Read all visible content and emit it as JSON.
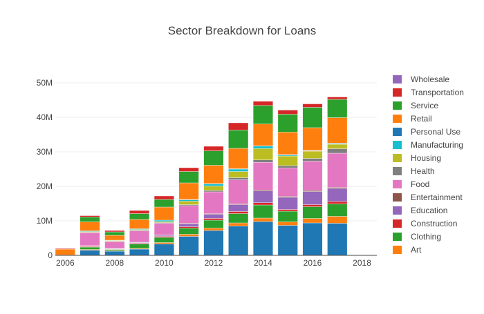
{
  "chart_data": {
    "type": "bar",
    "stacked": true,
    "title": "Sector Breakdown for Loans",
    "xlabel": "",
    "ylabel": "",
    "x": [
      2006,
      2007,
      2008,
      2009,
      2010,
      2011,
      2012,
      2013,
      2014,
      2015,
      2016,
      2017
    ],
    "xlim": [
      2005.6,
      2018.6
    ],
    "ylim": [
      0,
      54000000
    ],
    "x_ticks": [
      2006,
      2008,
      2010,
      2012,
      2014,
      2016,
      2018
    ],
    "y_ticks": [
      0,
      10000000,
      20000000,
      30000000,
      40000000,
      50000000
    ],
    "y_tick_labels": [
      "0",
      "10M",
      "20M",
      "30M",
      "40M",
      "50M"
    ],
    "grid": "horizontal",
    "legend_position": "right",
    "series": [
      {
        "name": "Personal Use",
        "color": "#1f77b4",
        "values": [
          0,
          1500000,
          1200000,
          1800000,
          3300000,
          5500000,
          7200000,
          8500000,
          9800000,
          8700000,
          9400000,
          9300000
        ]
      },
      {
        "name": "Art",
        "color": "#ff7f0e",
        "values": [
          0,
          200000,
          150000,
          200000,
          400000,
          600000,
          700000,
          900000,
          1000000,
          1000000,
          1300000,
          2000000
        ]
      },
      {
        "name": "Clothing",
        "color": "#2ca02c",
        "values": [
          0,
          700000,
          350000,
          1300000,
          1500000,
          1800000,
          2300000,
          2700000,
          3800000,
          3100000,
          3400000,
          3600000
        ]
      },
      {
        "name": "Construction",
        "color": "#d62728",
        "values": [
          0,
          200000,
          100000,
          200000,
          300000,
          400000,
          500000,
          600000,
          650000,
          500000,
          600000,
          700000
        ]
      },
      {
        "name": "Education",
        "color": "#9467bd",
        "values": [
          0,
          100000,
          100000,
          200000,
          300000,
          800000,
          1200000,
          2000000,
          3400000,
          3500000,
          3800000,
          3800000
        ]
      },
      {
        "name": "Entertainment",
        "color": "#8c564b",
        "values": [
          0,
          100000,
          100000,
          100000,
          100000,
          200000,
          200000,
          200000,
          300000,
          300000,
          300000,
          300000
        ]
      },
      {
        "name": "Food",
        "color": "#e377c2",
        "values": [
          100000,
          3800000,
          2000000,
          3300000,
          3400000,
          5100000,
          6300000,
          7000000,
          8000000,
          8200000,
          8500000,
          9900000
        ]
      },
      {
        "name": "Health",
        "color": "#7f7f7f",
        "values": [
          0,
          100000,
          100000,
          200000,
          200000,
          300000,
          400000,
          600000,
          700000,
          700000,
          800000,
          1300000
        ]
      },
      {
        "name": "Housing",
        "color": "#bcbd22",
        "values": [
          0,
          200000,
          200000,
          200000,
          300000,
          1000000,
          1300000,
          1800000,
          3300000,
          2800000,
          2100000,
          1300000
        ]
      },
      {
        "name": "Manufacturing",
        "color": "#17becf",
        "values": [
          0,
          200000,
          100000,
          200000,
          400000,
          400000,
          600000,
          700000,
          700000,
          300000,
          100000,
          200000
        ]
      },
      {
        "name": "Wholesale",
        "color": "#9467bd",
        "values": [
          0,
          0,
          0,
          0,
          0,
          100000,
          100000,
          100000,
          100000,
          100000,
          100000,
          100000
        ]
      },
      {
        "name": "Retail",
        "color": "#ff7f0e",
        "values": [
          1700000,
          2600000,
          1400000,
          2700000,
          3800000,
          4800000,
          5300000,
          5900000,
          6300000,
          6500000,
          6600000,
          7400000
        ]
      },
      {
        "name": "Service",
        "color": "#2ca02c",
        "values": [
          0,
          1400000,
          1000000,
          1700000,
          2200000,
          3300000,
          4200000,
          5300000,
          5400000,
          5200000,
          5900000,
          5300000
        ]
      },
      {
        "name": "Transportation",
        "color": "#d62728",
        "values": [
          200000,
          400000,
          400000,
          900000,
          1000000,
          1100000,
          1300000,
          2100000,
          1200000,
          1200000,
          1000000,
          700000
        ]
      }
    ],
    "legend_order": [
      "Wholesale",
      "Transportation",
      "Service",
      "Retail",
      "Personal Use",
      "Manufacturing",
      "Housing",
      "Health",
      "Food",
      "Entertainment",
      "Education",
      "Construction",
      "Clothing",
      "Art"
    ]
  }
}
